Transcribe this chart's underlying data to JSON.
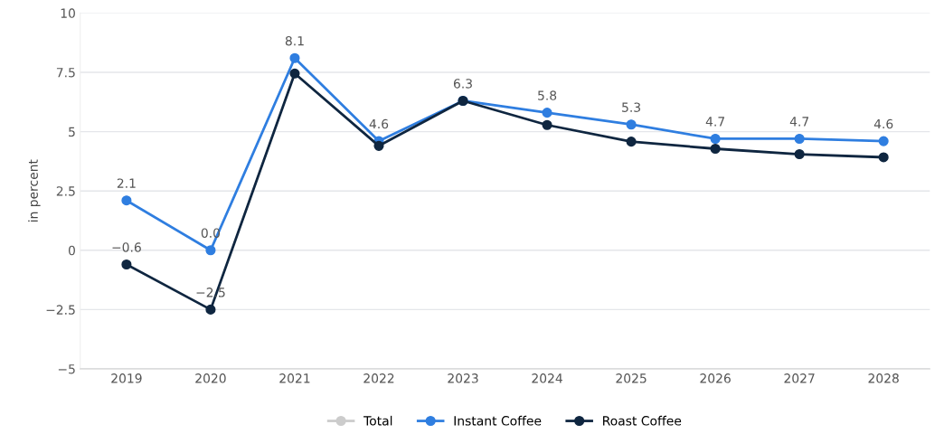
{
  "chart_data": {
    "type": "line",
    "ylabel": "in percent",
    "categories": [
      "2019",
      "2020",
      "2021",
      "2022",
      "2023",
      "2024",
      "2025",
      "2026",
      "2027",
      "2028"
    ],
    "series": [
      {
        "name": "Total",
        "color": "#cccccc",
        "values": [
          null,
          null,
          null,
          null,
          null,
          null,
          null,
          null,
          null,
          null
        ]
      },
      {
        "name": "Instant Coffee",
        "color": "#2f7ee0",
        "values": [
          2.1,
          0.0,
          8.1,
          4.6,
          6.3,
          5.8,
          5.3,
          4.7,
          4.7,
          4.6
        ],
        "value_labels": [
          "2.1",
          "0.0",
          "8.1",
          "4.6",
          "6.3",
          "5.8",
          "5.3",
          "4.7",
          "4.7",
          "4.6"
        ]
      },
      {
        "name": "Roast Coffee",
        "color": "#0f2640",
        "values": [
          -0.6,
          -2.5,
          7.45,
          4.4,
          6.3,
          5.28,
          4.58,
          4.28,
          4.05,
          3.92
        ],
        "value_labels": [
          "−0.6",
          "−2.5",
          null,
          null,
          null,
          null,
          null,
          null,
          null,
          null
        ]
      }
    ],
    "ylim": [
      -5,
      10
    ],
    "yticks": [
      {
        "value": -5,
        "label": "−5"
      },
      {
        "value": -2.5,
        "label": "−2.5"
      },
      0,
      2.5,
      5,
      7.5,
      10
    ],
    "grid": "y",
    "legend": "bottom",
    "marker": "circle",
    "line_style": "solid"
  }
}
